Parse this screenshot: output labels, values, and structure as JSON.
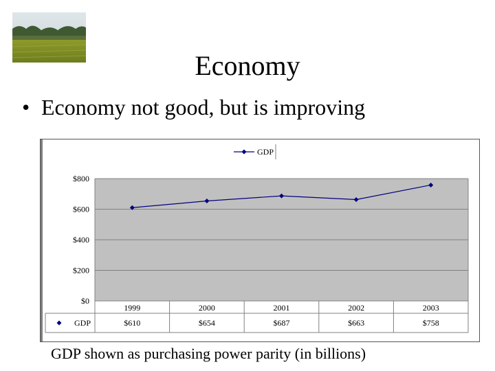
{
  "slide": {
    "title": "Economy",
    "bullet_symbol": "•",
    "bullet_text": "Economy not good, but is improving",
    "caption": "GDP shown as purchasing power parity (in billions)",
    "photo_icon": "rice-field-landscape-photo"
  },
  "chart_data": {
    "type": "line",
    "categories": [
      "1999",
      "2000",
      "2001",
      "2002",
      "2003"
    ],
    "series": [
      {
        "name": "GDP",
        "values": [
          610,
          654,
          687,
          663,
          758
        ],
        "color": "#000080"
      }
    ],
    "table_values": [
      "$610",
      "$654",
      "$687",
      "$663",
      "$758"
    ],
    "yticks": [
      "$0",
      "$200",
      "$400",
      "$600",
      "$800"
    ],
    "ylim": [
      0,
      800
    ],
    "grid": true,
    "legend": "top",
    "plot_background": "#c0c0c0"
  }
}
